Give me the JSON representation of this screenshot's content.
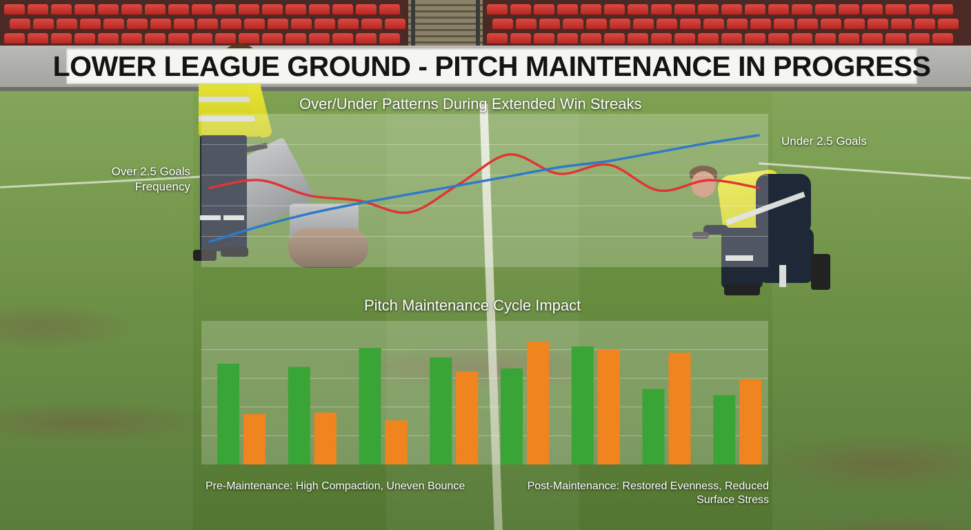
{
  "banner": {
    "text": "LOWER LEAGUE GROUND - PITCH MAINTENANCE IN PROGRESS"
  },
  "chart_data": [
    {
      "type": "line",
      "title": "Over/Under Patterns During Extended Win Streaks",
      "series": [
        {
          "label_line1": "Over 2.5 Goals",
          "label_line2": "Frequency",
          "color": "#e03535",
          "values": [
            0.52,
            0.58,
            0.46,
            0.42,
            0.33,
            0.55,
            0.78,
            0.63,
            0.7,
            0.5,
            0.58,
            0.52
          ]
        },
        {
          "label_line1": "Under 2.5 Goals",
          "color": "#2f79c9",
          "values": [
            0.1,
            0.22,
            0.32,
            0.4,
            0.47,
            0.54,
            0.61,
            0.68,
            0.73,
            0.8,
            0.87,
            0.93
          ]
        }
      ],
      "ylim": [
        0,
        1
      ],
      "grid": true
    },
    {
      "type": "bar",
      "title": "Pitch Maintenance Cycle Impact",
      "series": [
        {
          "color": "#3aa537",
          "values": [
            64,
            62,
            74,
            68,
            61,
            75,
            48,
            44
          ]
        },
        {
          "color": "#f0841f",
          "values": [
            32,
            33,
            28,
            59,
            78,
            73,
            71,
            54
          ]
        }
      ],
      "ylim": [
        0,
        100
      ],
      "grid": true,
      "annotations": {
        "pre": "Pre-Maintenance: High Compaction, Uneven Bounce",
        "post_line1": "Post-Maintenance: Restored Evenness, Reduced",
        "post_line2": "Surface Stress"
      }
    }
  ]
}
